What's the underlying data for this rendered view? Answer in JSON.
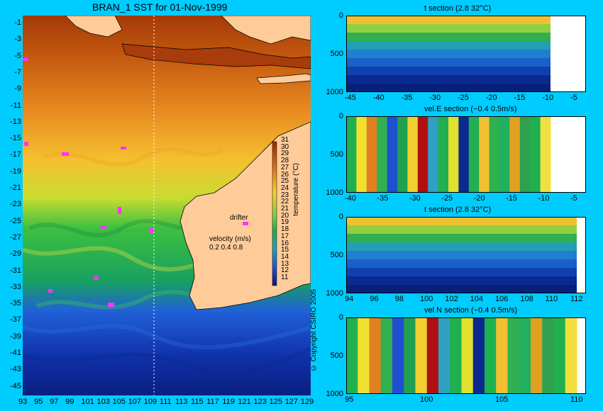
{
  "map": {
    "title": "BRAN_1 SST for 01-Nov-1999",
    "lat_ticks": [
      "-1",
      "-3",
      "-5",
      "-7",
      "-9",
      "-11",
      "-13",
      "-15",
      "-17",
      "-19",
      "-21",
      "-23",
      "-25",
      "-27",
      "-29",
      "-31",
      "-33",
      "-35",
      "-37",
      "-39",
      "-41",
      "-43",
      "-45"
    ],
    "lon_ticks": [
      "93",
      "95",
      "97",
      "99",
      "101",
      "103",
      "105",
      "107",
      "109",
      "111",
      "113",
      "115",
      "117",
      "119",
      "121",
      "123",
      "125",
      "127",
      "129"
    ],
    "colorbar_label": "temperature (°C)",
    "colorbar_ticks": [
      "31",
      "30",
      "29",
      "28",
      "27",
      "26",
      "25",
      "24",
      "23",
      "22",
      "21",
      "20",
      "19",
      "18",
      "17",
      "16",
      "15",
      "14",
      "13",
      "12",
      "11"
    ],
    "drifter_label": "drifter",
    "velocity_label": "velocity (m/s)",
    "velocity_scale": "0.2 0.4 0.8",
    "copyright": "© Copyright CSIRO 2005",
    "colors": {
      "warm": "#b84a10",
      "land": "#ffcc99",
      "drifter": "#ff33ff"
    }
  },
  "sections": [
    {
      "title": "t section (2.8       32°C)",
      "y_ticks": [
        "0",
        "500",
        "1000"
      ],
      "x_ticks": [
        "-45",
        "-40",
        "-35",
        "-30",
        "-25",
        "-20",
        "-15",
        "-10",
        "-5"
      ]
    },
    {
      "title": "vel.E section (−0.4       0.5m/s)",
      "y_ticks": [
        "0",
        "500",
        "1000"
      ],
      "x_ticks": [
        "-40",
        "-35",
        "-30",
        "-25",
        "-20",
        "-15",
        "-10",
        "-5"
      ]
    },
    {
      "title": "t section (2.8       32°C)",
      "y_ticks": [
        "0",
        "500",
        "1000"
      ],
      "x_ticks": [
        "94",
        "96",
        "98",
        "100",
        "102",
        "104",
        "106",
        "108",
        "110",
        "112"
      ]
    },
    {
      "title": "vel.N section (−0.4       0.5m/s)",
      "y_ticks": [
        "0",
        "500",
        "1000"
      ],
      "x_ticks": [
        "95",
        "100",
        "105",
        "110"
      ]
    }
  ]
}
